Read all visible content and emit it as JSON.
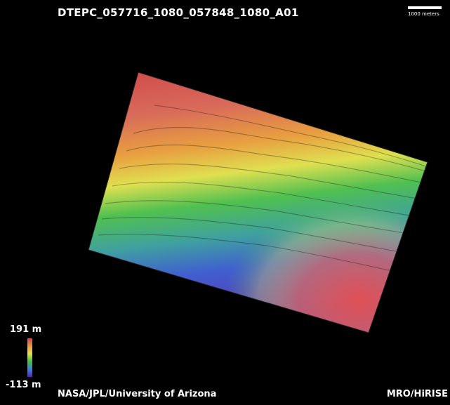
{
  "map": {
    "title": "DTEPC_057716_1080_057848_1080_A01",
    "scale_label": "1000 meters",
    "legend": {
      "max_label": "191 m",
      "min_label": "-113 m"
    },
    "credit_left": "NASA/JPL/University of Arizona",
    "credit_right": "MRO/HiRISE",
    "colors": {
      "high": "#d04a4a",
      "mid_high": "#e8a040",
      "mid": "#e8e050",
      "mid_low": "#40c040",
      "low": "#4080e0",
      "lowest": "#6020c0"
    }
  }
}
